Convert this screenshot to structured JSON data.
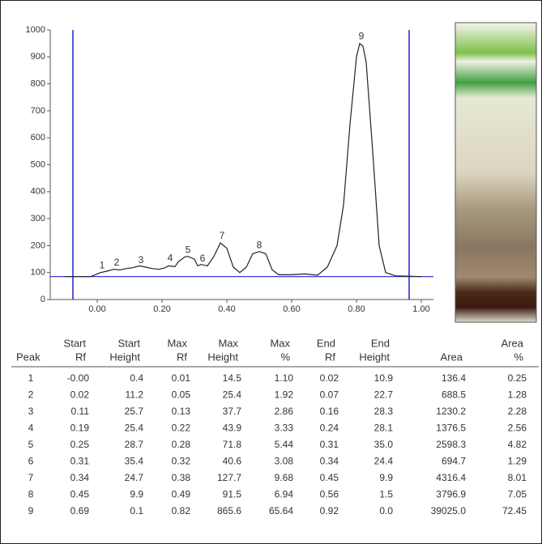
{
  "chart_data": {
    "type": "line",
    "x": [
      -0.1,
      -0.02,
      0.0,
      0.01,
      0.03,
      0.05,
      0.07,
      0.09,
      0.11,
      0.13,
      0.15,
      0.17,
      0.19,
      0.21,
      0.22,
      0.24,
      0.25,
      0.27,
      0.28,
      0.3,
      0.31,
      0.32,
      0.34,
      0.36,
      0.38,
      0.4,
      0.42,
      0.44,
      0.46,
      0.48,
      0.5,
      0.52,
      0.54,
      0.56,
      0.6,
      0.64,
      0.68,
      0.71,
      0.74,
      0.76,
      0.78,
      0.8,
      0.81,
      0.82,
      0.83,
      0.85,
      0.87,
      0.89,
      0.92,
      1.0
    ],
    "values": [
      85,
      85,
      95,
      100,
      105,
      112,
      110,
      115,
      118,
      125,
      120,
      115,
      112,
      118,
      125,
      122,
      140,
      158,
      160,
      150,
      125,
      130,
      125,
      160,
      210,
      190,
      120,
      100,
      120,
      170,
      178,
      170,
      110,
      92,
      92,
      95,
      90,
      120,
      200,
      350,
      650,
      900,
      950,
      940,
      880,
      550,
      200,
      100,
      88,
      85
    ],
    "color": "#222222",
    "xlim": [
      -0.145,
      1.0375
    ],
    "ylim": [
      0,
      1000
    ],
    "xticks": [
      {
        "value": 0,
        "label": "0.00"
      },
      {
        "value": 0.2,
        "label": "0.20"
      },
      {
        "value": 0.4,
        "label": "0.40"
      },
      {
        "value": 0.6,
        "label": "0.60"
      },
      {
        "value": 0.8,
        "label": "0.80"
      },
      {
        "value": 1,
        "label": "1.00"
      }
    ],
    "yticks": [
      0,
      100,
      200,
      300,
      400,
      500,
      600,
      700,
      800,
      900,
      1000
    ],
    "marker_lines": [
      -0.075,
      0.9625
    ],
    "baseline": 85,
    "marker_color": "#2222cc",
    "annotations": [
      {
        "text": "1",
        "x": 0.015,
        "y": 125
      },
      {
        "text": "2",
        "x": 0.06,
        "y": 135
      },
      {
        "text": "3",
        "x": 0.135,
        "y": 145
      },
      {
        "text": "4",
        "x": 0.225,
        "y": 152
      },
      {
        "text": "5",
        "x": 0.28,
        "y": 182
      },
      {
        "text": "6",
        "x": 0.325,
        "y": 150
      },
      {
        "text": "7",
        "x": 0.385,
        "y": 235
      },
      {
        "text": "8",
        "x": 0.5,
        "y": 200
      },
      {
        "text": "9",
        "x": 0.815,
        "y": 975
      }
    ]
  },
  "table": {
    "headers": [
      [
        "Peak"
      ],
      [
        "Start",
        "Rf"
      ],
      [
        "Start",
        "Height"
      ],
      [
        "Max",
        "Rf"
      ],
      [
        "Max",
        "Height"
      ],
      [
        "Max",
        "%"
      ],
      [
        "End",
        "Rf"
      ],
      [
        "End",
        "Height"
      ],
      [
        "Area"
      ],
      [
        "Area",
        "%"
      ]
    ],
    "rows": [
      [
        "1",
        "-0.00",
        "0.4",
        "0.01",
        "14.5",
        "1.10",
        "0.02",
        "10.9",
        "136.4",
        "0.25"
      ],
      [
        "2",
        "0.02",
        "11.2",
        "0.05",
        "25.4",
        "1.92",
        "0.07",
        "22.7",
        "688.5",
        "1.28"
      ],
      [
        "3",
        "0.11",
        "25.7",
        "0.13",
        "37.7",
        "2.86",
        "0.16",
        "28.3",
        "1230.2",
        "2.28"
      ],
      [
        "4",
        "0.19",
        "25.4",
        "0.22",
        "43.9",
        "3.33",
        "0.24",
        "28.1",
        "1376.5",
        "2.56"
      ],
      [
        "5",
        "0.25",
        "28.7",
        "0.28",
        "71.8",
        "5.44",
        "0.31",
        "35.0",
        "2598.3",
        "4.82"
      ],
      [
        "6",
        "0.31",
        "35.4",
        "0.32",
        "40.6",
        "3.08",
        "0.34",
        "24.4",
        "694.7",
        "1.29"
      ],
      [
        "7",
        "0.34",
        "24.7",
        "0.38",
        "127.7",
        "9.68",
        "0.45",
        "9.9",
        "4316.4",
        "8.01"
      ],
      [
        "8",
        "0.45",
        "9.9",
        "0.49",
        "91.5",
        "6.94",
        "0.56",
        "1.5",
        "3796.9",
        "7.05"
      ],
      [
        "9",
        "0.69",
        "0.1",
        "0.82",
        "865.6",
        "65.64",
        "0.92",
        "0.0",
        "39025.0",
        "72.45"
      ]
    ]
  }
}
